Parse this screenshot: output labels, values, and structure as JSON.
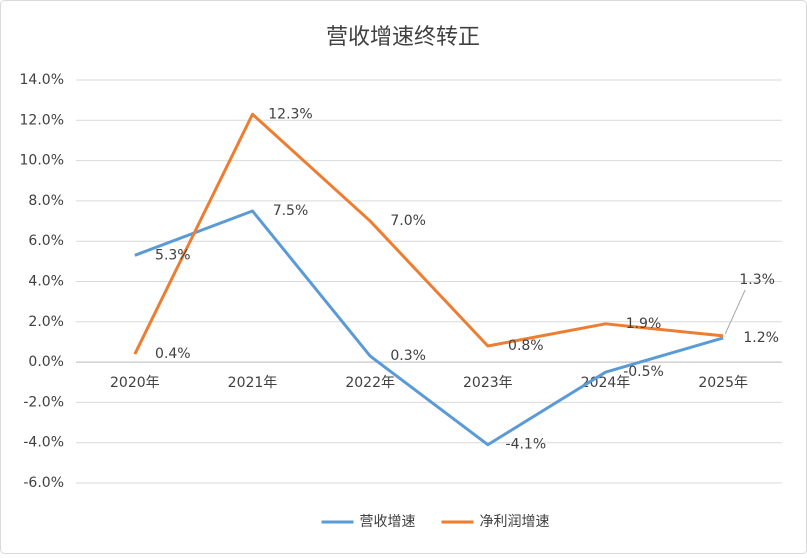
{
  "chart_data": {
    "type": "line",
    "title": "营收增速终转正",
    "categories": [
      "2020年",
      "2021年",
      "2022年",
      "2023年",
      "2024年",
      "2025年"
    ],
    "series": [
      {
        "name": "营收增速",
        "color": "#5b9bd5",
        "values": [
          5.3,
          7.5,
          0.3,
          -4.1,
          -0.5,
          1.2
        ],
        "value_labels": [
          "5.3%",
          "7.5%",
          "0.3%",
          "-4.1%",
          "-0.5%",
          "1.2%"
        ]
      },
      {
        "name": "净利润增速",
        "color": "#ed7d31",
        "values": [
          0.4,
          12.3,
          7.0,
          0.8,
          1.9,
          1.3
        ],
        "value_labels": [
          "0.4%",
          "12.3%",
          "7.0%",
          "0.8%",
          "1.9%",
          "1.3%"
        ]
      }
    ],
    "ylim": [
      -6,
      14
    ],
    "yticks": [
      {
        "value": -6,
        "label": "-6.0%"
      },
      {
        "value": -4,
        "label": "-4.0%"
      },
      {
        "value": -2,
        "label": "-2.0%"
      },
      {
        "value": 0,
        "label": "0.0%"
      },
      {
        "value": 2,
        "label": "2.0%"
      },
      {
        "value": 4,
        "label": "4.0%"
      },
      {
        "value": 6,
        "label": "6.0%"
      },
      {
        "value": 8,
        "label": "8.0%"
      },
      {
        "value": 10,
        "label": "10.0%"
      },
      {
        "value": 12,
        "label": "12.0%"
      },
      {
        "value": 14,
        "label": "14.0%"
      }
    ],
    "grid": true,
    "legend": "bottom"
  }
}
